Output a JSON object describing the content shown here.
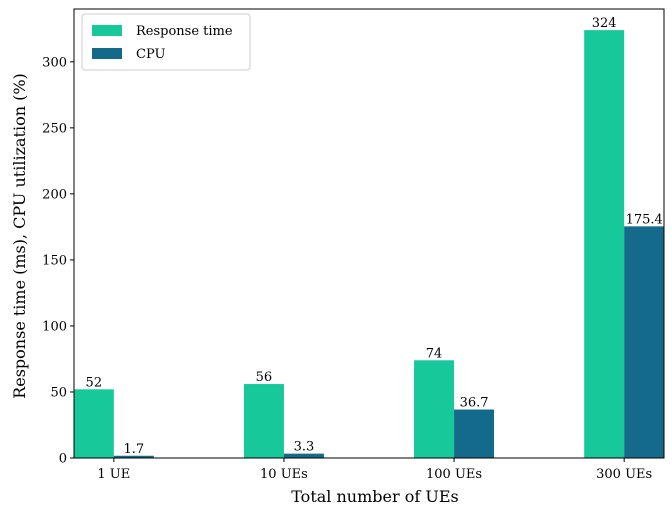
{
  "chart_data": {
    "type": "bar",
    "categories": [
      "1 UE",
      "10 UEs",
      "100 UEs",
      "300 UEs"
    ],
    "series": [
      {
        "name": "Response time",
        "values": [
          52,
          56,
          74,
          324
        ],
        "labels": [
          "52",
          "56",
          "74",
          "324"
        ],
        "color": "#17c89a"
      },
      {
        "name": "CPU",
        "values": [
          1.7,
          3.3,
          36.7,
          175.4
        ],
        "labels": [
          "1.7",
          "3.3",
          "36.7",
          "175.4"
        ],
        "color": "#136a8a"
      }
    ],
    "xlabel": "Total number of UEs",
    "ylabel": "Response time (ms), CPU utilization (%)",
    "ylim": [
      0,
      340
    ],
    "yticks": [
      0,
      50,
      100,
      150,
      200,
      250,
      300
    ],
    "grid": false,
    "legend_position": "top-left"
  }
}
